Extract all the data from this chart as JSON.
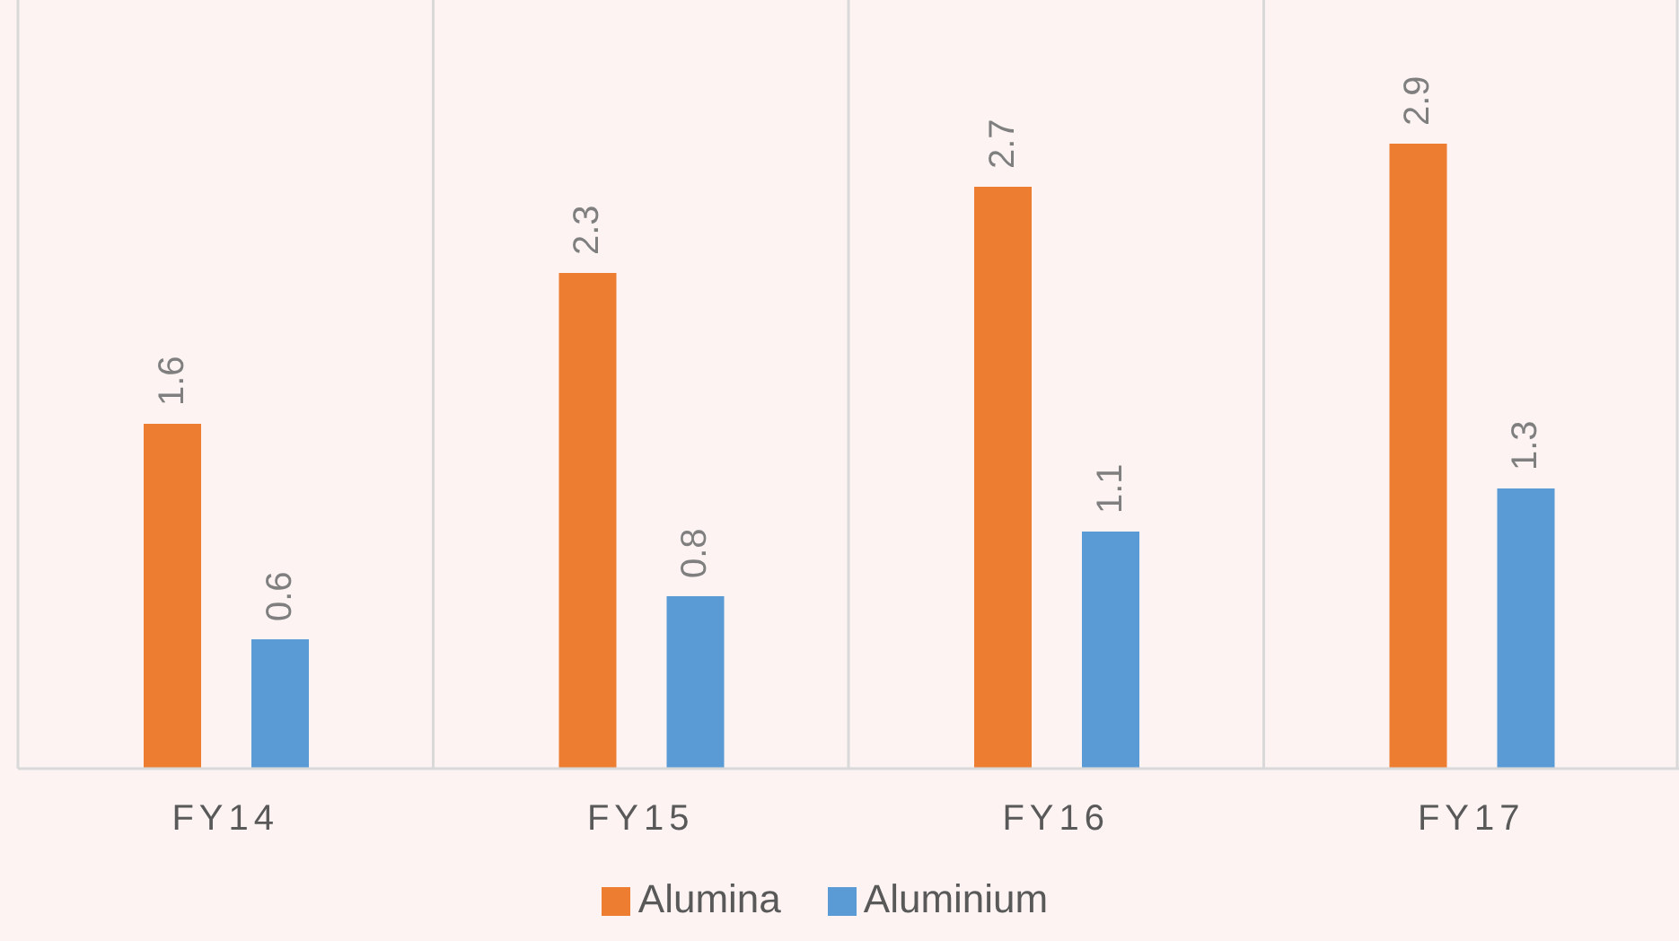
{
  "chart_data": {
    "type": "bar",
    "categories": [
      "FY14",
      "FY15",
      "FY16",
      "FY17"
    ],
    "series": [
      {
        "name": "Alumina",
        "color": "#ed7d31",
        "values": [
          1.6,
          2.3,
          2.7,
          2.9
        ]
      },
      {
        "name": "Aluminium",
        "color": "#5b9bd5",
        "values": [
          0.6,
          0.8,
          1.1,
          1.3
        ]
      }
    ],
    "data_labels": true,
    "grid": "x",
    "legend": "bottom"
  }
}
